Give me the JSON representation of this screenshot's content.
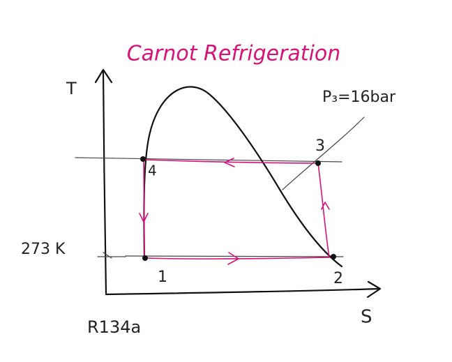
{
  "title": "Carnot Refrigeration",
  "axes": {
    "y_label": "T",
    "x_label": "S"
  },
  "temperature_label": "273 K",
  "pressure_label": "P₃=16bar",
  "refrigerant": "R134a",
  "points": [
    {
      "label": "1"
    },
    {
      "label": "2"
    },
    {
      "label": "3"
    },
    {
      "label": "4"
    }
  ]
}
